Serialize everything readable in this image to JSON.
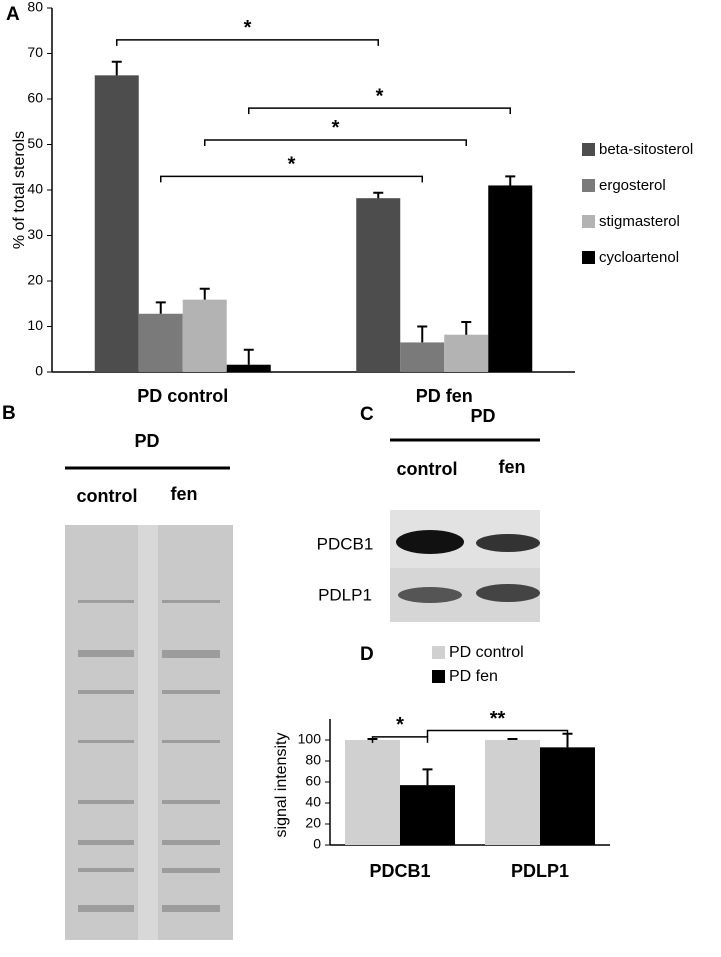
{
  "chart_data": [
    {
      "type": "bar",
      "panel_label": "A",
      "y_label": "% of total sterols",
      "categories": [
        "PD control",
        "PD fen"
      ],
      "series": [
        {
          "name": "beta-sitosterol",
          "color": "#4d4d4d",
          "values": [
            65.2,
            38.2
          ],
          "errors": [
            3,
            1.2
          ]
        },
        {
          "name": "ergosterol",
          "color": "#7a7a7a",
          "values": [
            12.8,
            6.5
          ],
          "errors": [
            2.5,
            3.5
          ]
        },
        {
          "name": "stigmasterol",
          "color": "#b3b3b3",
          "values": [
            15.9,
            8.2
          ],
          "errors": [
            2.4,
            2.8
          ]
        },
        {
          "name": "cycloartenol",
          "color": "#000000",
          "values": [
            1.6,
            41
          ],
          "errors": [
            3.3,
            2
          ]
        }
      ],
      "ylim": [
        0,
        80
      ],
      "yticks": [
        0,
        10,
        20,
        30,
        40,
        50,
        60,
        70,
        80
      ],
      "grid": false,
      "legend": "right",
      "annotations": [
        {
          "from": [
            0,
            0
          ],
          "to": [
            0,
            1
          ],
          "y": 73,
          "label": "*"
        },
        {
          "from": [
            1,
            0
          ],
          "to": [
            1,
            1
          ],
          "y": 43,
          "label": "*"
        },
        {
          "from": [
            2,
            0
          ],
          "to": [
            2,
            1
          ],
          "y": 51,
          "label": "*"
        },
        {
          "from": [
            3,
            0
          ],
          "to": [
            3,
            1
          ],
          "y": 58,
          "label": "*"
        }
      ]
    },
    {
      "type": "bar",
      "panel_label": "D",
      "y_label": "signal intensity",
      "categories": [
        "PDCB1",
        "PDLP1"
      ],
      "series": [
        {
          "name": "PD control",
          "color": "#d0d0d0",
          "values": [
            100,
            100
          ],
          "errors": [
            1,
            1
          ]
        },
        {
          "name": "PD fen",
          "color": "#000000",
          "values": [
            57,
            93
          ],
          "errors": [
            15,
            13
          ]
        }
      ],
      "ylim": [
        0,
        120
      ],
      "yticks": [
        0,
        20,
        40,
        60,
        80,
        100
      ],
      "grid": false,
      "legend": "top",
      "annotations": [
        {
          "from": [
            0,
            0
          ],
          "to": [
            1,
            0
          ],
          "y": 103,
          "label": "*"
        },
        {
          "from": [
            1,
            0
          ],
          "to": [
            1,
            1
          ],
          "y": 109,
          "label": "**"
        }
      ]
    }
  ],
  "gel": {
    "panel_label": "B",
    "group": "PD",
    "lanes": [
      "control",
      "fen"
    ]
  },
  "blot": {
    "panel_label": "C",
    "group": "PD",
    "lanes": [
      "control",
      "fen"
    ],
    "proteins": [
      "PDCB1",
      "PDLP1"
    ]
  }
}
